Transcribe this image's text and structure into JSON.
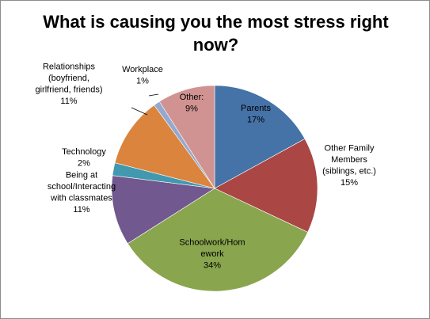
{
  "chart_data": {
    "type": "pie",
    "title": "What is causing you the most stress right now?",
    "start_angle_deg": 0,
    "direction": "clockwise",
    "slices": [
      {
        "label": [
          "Parents",
          "17%"
        ],
        "value": 17,
        "color": "#4572A7"
      },
      {
        "label": [
          "Other Family",
          "Members",
          "(siblings, etc.)",
          "15%"
        ],
        "value": 15,
        "color": "#AA4643"
      },
      {
        "label": [
          "Schoolwork/Hom",
          "ework",
          "34%"
        ],
        "value": 34,
        "color": "#89A54E"
      },
      {
        "label": [
          "Being at",
          "school/Interacting",
          "with classmates",
          "11%"
        ],
        "value": 11,
        "color": "#71588F"
      },
      {
        "label": [
          "Technology",
          "2%"
        ],
        "value": 2,
        "color": "#4198AF"
      },
      {
        "label": [
          "Relationships",
          "(boyfriend,",
          "girlfriend, friends)",
          "11%"
        ],
        "value": 11,
        "color": "#DB843D"
      },
      {
        "label": [
          "Workplace",
          "1%"
        ],
        "value": 1,
        "color": "#93A9CF"
      },
      {
        "label": [
          "Other:",
          "9%"
        ],
        "value": 9,
        "color": "#D19392"
      }
    ],
    "legend": "none"
  }
}
